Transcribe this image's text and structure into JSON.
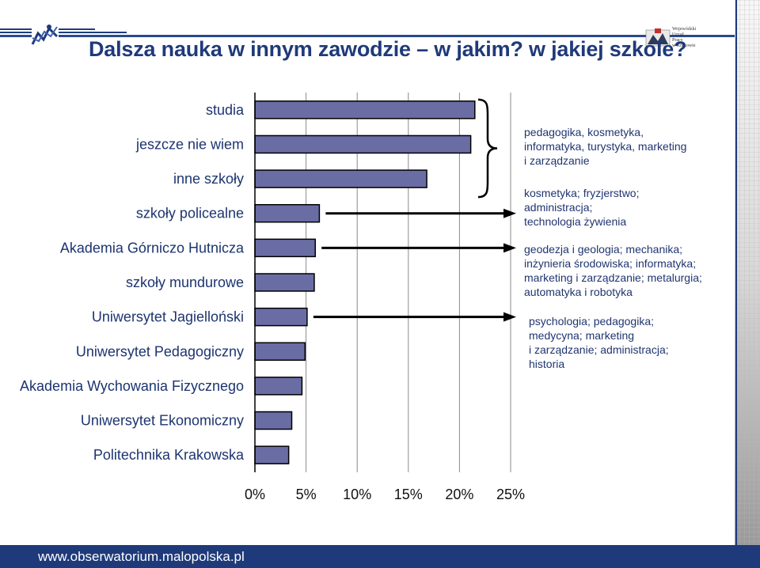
{
  "slide": {
    "title": "Dalsza nauka w innym zawodzie – w jakim? w jakiej szkole?",
    "footer_url": "www.obserwatorium.malopolska.pl",
    "logo_right_text": [
      "Wojewódzki",
      "Urząd",
      "Pracy",
      "w Krakowie"
    ]
  },
  "chart_data": {
    "type": "bar",
    "orientation": "horizontal",
    "categories": [
      "studia",
      "jeszcze nie wiem",
      "inne szkoły",
      "szkoły policealne",
      "Akademia Górniczo Hutnicza",
      "szkoły mundurowe",
      "Uniwersytet Jagielloński",
      "Uniwersytet Pedagogiczny",
      "Akademia Wychowania Fizycznego",
      "Uniwersytet Ekonomiczny",
      "Politechnika Krakowska"
    ],
    "values": [
      21.5,
      21.1,
      16.8,
      6.3,
      5.9,
      5.8,
      5.1,
      4.9,
      4.6,
      3.6,
      3.3
    ],
    "value_unit": "%",
    "xlim": [
      0,
      25
    ],
    "xticks": [
      "0%",
      "5%",
      "10%",
      "15%",
      "20%",
      "25%"
    ],
    "grid": "vertical",
    "bar_color": "#6a6da4",
    "bar_edge_color": "#000000",
    "annotations": [
      {
        "target_categories": [
          0,
          1,
          2
        ],
        "connector": "brace",
        "text": [
          "pedagogika, kosmetyka,",
          "informatyka, turystyka, marketing",
          "i zarządzanie"
        ]
      },
      {
        "target_categories": [
          3
        ],
        "connector": "arrow",
        "text": [
          "kosmetyka; fryzjerstwo;",
          "administracja;",
          "technologia żywienia"
        ]
      },
      {
        "target_categories": [
          4
        ],
        "connector": "arrow",
        "text": [
          "geodezja i geologia; mechanika;",
          "inżynieria środowiska; informatyka;",
          "marketing i zarządzanie; metalurgia;",
          "automatyka i robotyka"
        ]
      },
      {
        "target_categories": [
          6
        ],
        "connector": "arrow",
        "text": [
          "psychologia; pedagogika;",
          "medycyna; marketing",
          "i zarządzanie; administracja;",
          "historia"
        ]
      }
    ]
  }
}
